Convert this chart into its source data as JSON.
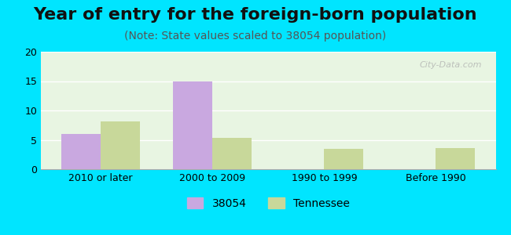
{
  "title": "Year of entry for the foreign-born population",
  "subtitle": "(Note: State values scaled to 38054 population)",
  "categories": [
    "2010 or later",
    "2000 to 2009",
    "1990 to 1999",
    "Before 1990"
  ],
  "values_38054": [
    6,
    15,
    0,
    0
  ],
  "values_tennessee": [
    8.2,
    5.4,
    3.5,
    3.6
  ],
  "bar_color_38054": "#c9a8e0",
  "bar_color_tennessee": "#c8d89a",
  "background_outer": "#00e5ff",
  "background_inner_left": "#e8f5e2",
  "background_inner_right": "#f5f5f5",
  "ylim": [
    0,
    20
  ],
  "yticks": [
    0,
    5,
    10,
    15,
    20
  ],
  "bar_width": 0.35,
  "legend_label_38054": "38054",
  "legend_label_tennessee": "Tennessee",
  "title_fontsize": 16,
  "subtitle_fontsize": 10,
  "tick_fontsize": 9,
  "legend_fontsize": 10
}
